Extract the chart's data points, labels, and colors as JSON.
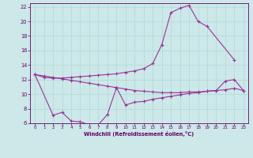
{
  "background_color": "#cce8e8",
  "grid_color": "#aacccc",
  "line_color": "#993399",
  "xlabel": "Windchill (Refroidissement éolien,°C)",
  "ylim": [
    6,
    22.5
  ],
  "yticks": [
    6,
    8,
    10,
    12,
    14,
    16,
    18,
    20,
    22
  ],
  "xlim": [
    -0.5,
    23.5
  ],
  "xticks": [
    0,
    1,
    2,
    3,
    4,
    5,
    6,
    7,
    8,
    9,
    10,
    11,
    12,
    13,
    14,
    15,
    16,
    17,
    18,
    19,
    20,
    21,
    22,
    23
  ],
  "s1_x": [
    0,
    1,
    2,
    3,
    4,
    5,
    6,
    7,
    8,
    9,
    10,
    11,
    12,
    13,
    14,
    15,
    16,
    17,
    18,
    19,
    22
  ],
  "s1_y": [
    12.7,
    12.3,
    12.2,
    12.2,
    12.3,
    12.4,
    12.5,
    12.6,
    12.7,
    12.8,
    13.0,
    13.2,
    13.5,
    14.2,
    16.8,
    21.2,
    21.8,
    22.2,
    20.0,
    19.3,
    14.7
  ],
  "s2_x": [
    0,
    1,
    2,
    3,
    4,
    5,
    6,
    7,
    8,
    9,
    10,
    11,
    12,
    13,
    14,
    15,
    16,
    17,
    18,
    19,
    20,
    21,
    22,
    23
  ],
  "s2_y": [
    12.7,
    12.5,
    12.3,
    12.1,
    11.9,
    11.7,
    11.5,
    11.3,
    11.1,
    10.9,
    10.7,
    10.5,
    10.4,
    10.3,
    10.2,
    10.2,
    10.2,
    10.3,
    10.3,
    10.4,
    10.5,
    10.6,
    10.8,
    10.5
  ],
  "s3_x": [
    0,
    2,
    3,
    4,
    5,
    6,
    7,
    8,
    9
  ],
  "s3_y": [
    12.7,
    7.1,
    7.5,
    6.3,
    6.2,
    5.8,
    5.8,
    7.2,
    10.9
  ],
  "s4_x": [
    9,
    10,
    11,
    12,
    13,
    14,
    15,
    16,
    17,
    18,
    19,
    20,
    21,
    22,
    23
  ],
  "s4_y": [
    10.9,
    8.5,
    8.9,
    9.0,
    9.3,
    9.5,
    9.7,
    9.9,
    10.1,
    10.2,
    10.4,
    10.5,
    11.8,
    12.0,
    10.5
  ]
}
